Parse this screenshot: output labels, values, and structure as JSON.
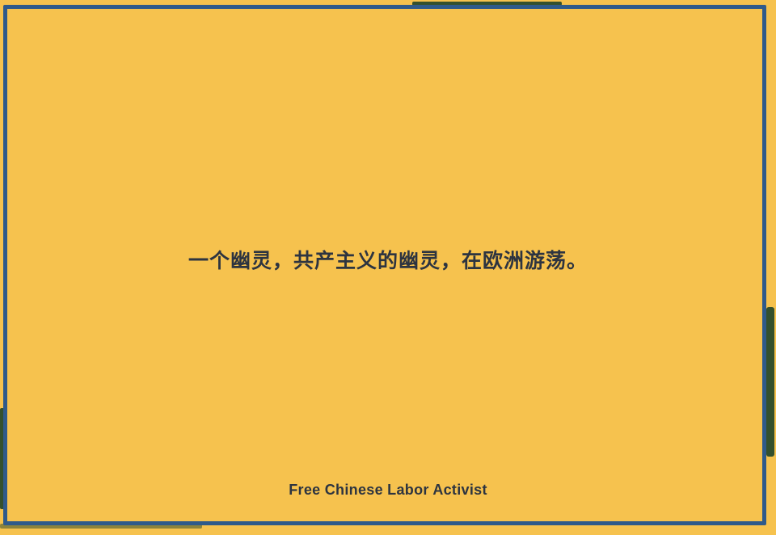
{
  "card": {
    "headline": "一个幽灵，共产主义的幽灵，在欧洲游荡。",
    "credit": "Free Chinese Labor Activist"
  },
  "colors": {
    "background": "#f6c24e",
    "frame": "#2f5a8a",
    "text": "#2d3440",
    "accent_green": "#34502d"
  }
}
